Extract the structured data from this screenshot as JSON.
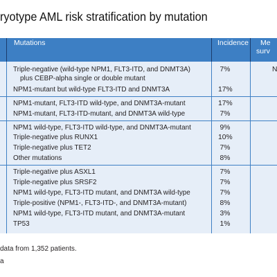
{
  "title": "ryotype AML risk stratification by mutation",
  "header": {
    "mutations_label": "Mutations",
    "incidence_label": "Incidence",
    "survival_line1": "Me",
    "survival_line2": "surv"
  },
  "groups": [
    {
      "rows": [
        {
          "mutation": "Triple-negative (wild-type NPM1, FLT3-ITD, and DNMT3A)",
          "incidence": "7%",
          "survival": "N"
        },
        {
          "mutation": "plus CEBP-alpha single or double mutant",
          "incidence": "",
          "survival": ""
        },
        {
          "mutation": "NPM1-mutant but wild-type FLT3-ITD and DNMT3A",
          "incidence": "17%",
          "survival": ""
        }
      ]
    },
    {
      "rows": [
        {
          "mutation": "NPM1-mutant, FLT3-ITD wild-type, and DNMT3A-mutant",
          "incidence": "17%",
          "survival": ""
        },
        {
          "mutation": "NPM1-mutant, FLT3-ITD-mutant, and DNMT3A wild-type",
          "incidence": "7%",
          "survival": ""
        }
      ]
    },
    {
      "rows": [
        {
          "mutation": "NPM1 wild-type, FLT3-ITD wild-type, and DNMT3A-mutant",
          "incidence": "9%",
          "survival": ""
        },
        {
          "mutation": "Triple-negative plus RUNX1",
          "incidence": "10%",
          "survival": ""
        },
        {
          "mutation": "Triple-negative plus TET2",
          "incidence": "7%",
          "survival": ""
        },
        {
          "mutation": "Other mutations",
          "incidence": "8%",
          "survival": ""
        }
      ]
    },
    {
      "rows": [
        {
          "mutation": "Triple-negative plus ASXL1",
          "incidence": "7%",
          "survival": ""
        },
        {
          "mutation": "Triple-negative plus SRSF2",
          "incidence": "7%",
          "survival": ""
        },
        {
          "mutation": "NPM1 wild-type, FLT3-ITD mutant, and DNMT3A wild-type",
          "incidence": "7%",
          "survival": ""
        },
        {
          "mutation": "Triple-positive (NPM1-, FLT3-ITD-, and DNMT3A-mutant)",
          "incidence": "8%",
          "survival": ""
        },
        {
          "mutation": "NPM1 wild-type, FLT3-ITD mutant, and DNMT3A-mutant",
          "incidence": "3%",
          "survival": ""
        },
        {
          "mutation": "TP53",
          "incidence": "1%",
          "survival": ""
        }
      ]
    }
  ],
  "footnotes": [
    "data from 1,352 patients.",
    "a"
  ]
}
